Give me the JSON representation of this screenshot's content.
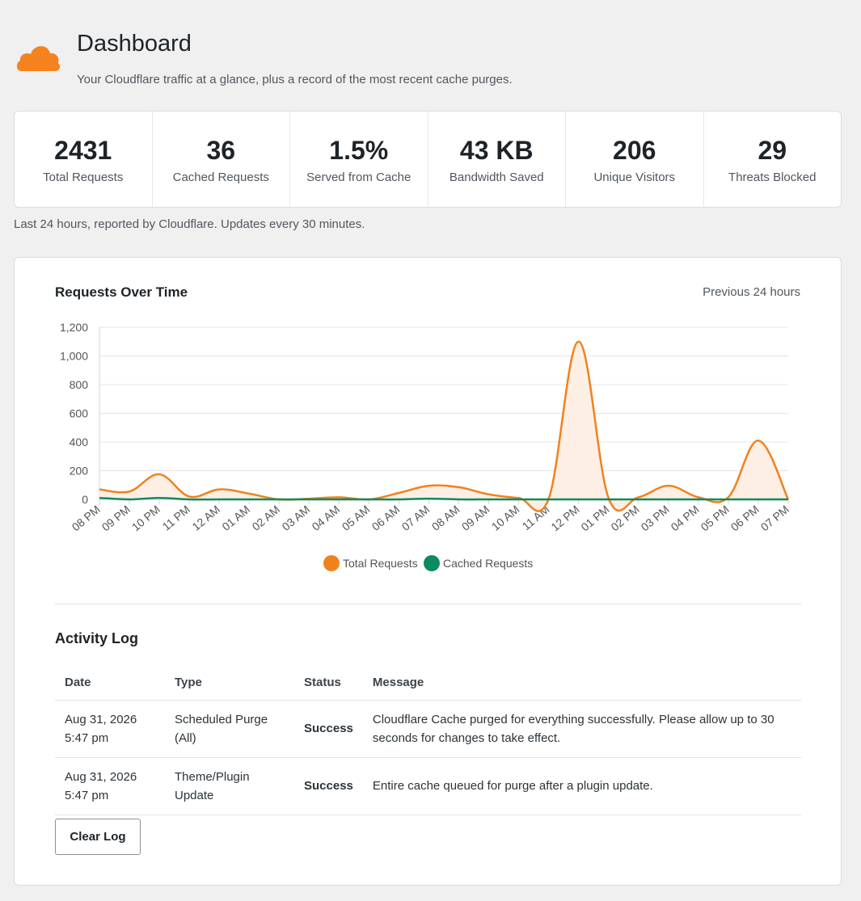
{
  "header": {
    "title": "Dashboard",
    "subtitle": "Your Cloudflare traffic at a glance, plus a record of the most recent cache purges.",
    "logo_icon": "cloud-icon",
    "logo_color": "#f6821f"
  },
  "stats": [
    {
      "value": "2431",
      "label": "Total Requests"
    },
    {
      "value": "36",
      "label": "Cached Requests"
    },
    {
      "value": "1.5%",
      "label": "Served from Cache"
    },
    {
      "value": "43 KB",
      "label": "Bandwidth Saved"
    },
    {
      "value": "206",
      "label": "Unique Visitors"
    },
    {
      "value": "29",
      "label": "Threats Blocked"
    }
  ],
  "stats_note": "Last 24 hours, reported by Cloudflare. Updates every 30 minutes.",
  "chart": {
    "title": "Requests Over Time",
    "range_label": "Previous 24 hours"
  },
  "chart_data": {
    "type": "area",
    "title": "Requests Over Time",
    "xlabel": "",
    "ylabel": "",
    "categories": [
      "08 PM",
      "09 PM",
      "10 PM",
      "11 PM",
      "12 AM",
      "01 AM",
      "02 AM",
      "03 AM",
      "04 AM",
      "05 AM",
      "06 AM",
      "07 AM",
      "08 AM",
      "09 AM",
      "10 AM",
      "11 AM",
      "12 PM",
      "01 PM",
      "02 PM",
      "03 PM",
      "04 PM",
      "05 PM",
      "06 PM",
      "07 PM"
    ],
    "ylim": [
      0,
      1200
    ],
    "yticks": [
      "0",
      "200",
      "400",
      "600",
      "800",
      "1,000",
      "1,200"
    ],
    "grid": true,
    "legend_position": "bottom",
    "series": [
      {
        "name": "Total Requests",
        "color": "#f0821e",
        "fill": "#fdefe3",
        "values": [
          70,
          55,
          175,
          20,
          70,
          40,
          0,
          5,
          15,
          0,
          45,
          95,
          85,
          35,
          10,
          5,
          1100,
          10,
          15,
          95,
          15,
          15,
          410,
          0
        ]
      },
      {
        "name": "Cached Requests",
        "color": "#0e8a5f",
        "values": [
          10,
          0,
          10,
          0,
          0,
          0,
          0,
          0,
          0,
          0,
          0,
          5,
          0,
          0,
          0,
          0,
          0,
          0,
          0,
          0,
          0,
          0,
          0,
          0
        ]
      }
    ]
  },
  "activity_log": {
    "title": "Activity Log",
    "columns": [
      "Date",
      "Type",
      "Status",
      "Message"
    ],
    "rows": [
      {
        "date_line1": "Aug 31, 2026",
        "date_line2": "5:47 pm",
        "type_line1": "Scheduled Purge",
        "type_line2": "(All)",
        "status": "Success",
        "message": "Cloudflare Cache purged for everything successfully. Please allow up to 30 seconds for changes to take effect."
      },
      {
        "date_line1": "Aug 31, 2026",
        "date_line2": "5:47 pm",
        "type_line1": "Theme/Plugin",
        "type_line2": "Update",
        "status": "Success",
        "message": "Entire cache queued for purge after a plugin update."
      }
    ],
    "clear_label": "Clear Log"
  }
}
